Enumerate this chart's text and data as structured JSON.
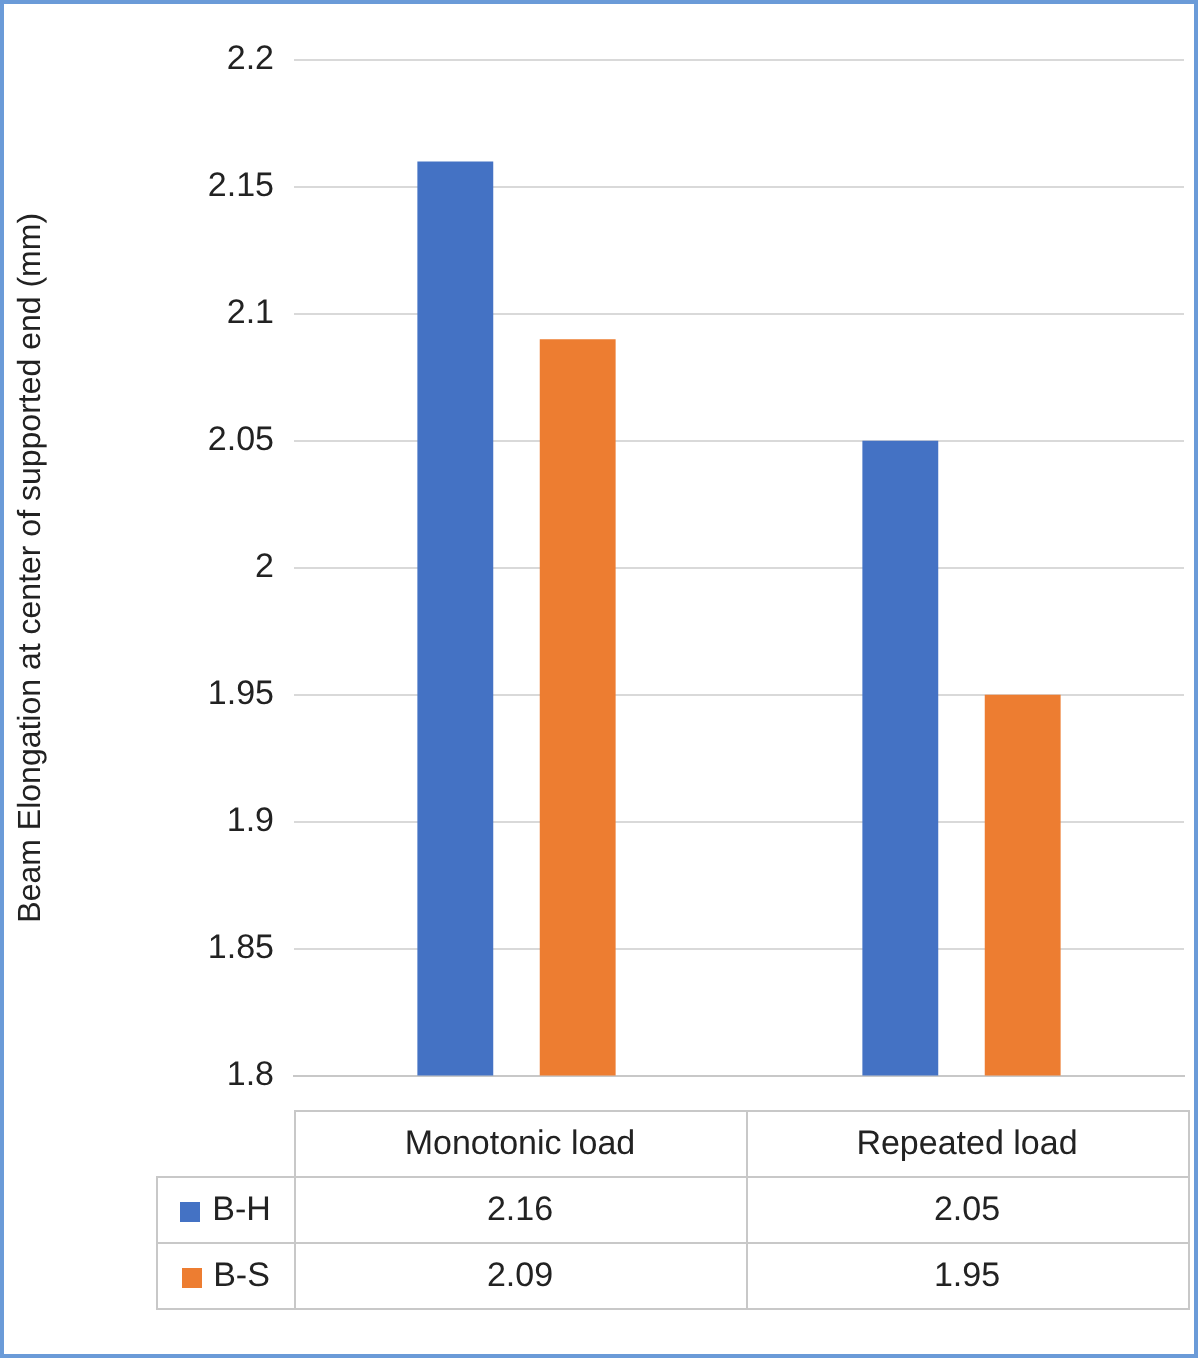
{
  "chart_data": {
    "type": "bar",
    "ylabel": "Beam Elongation at center of supported end (mm)",
    "categories": [
      "Monotonic load",
      "Repeated load"
    ],
    "series": [
      {
        "name": "B-H",
        "color": "#4472c4",
        "values": [
          2.16,
          2.05
        ]
      },
      {
        "name": "B-S",
        "color": "#ed7d31",
        "values": [
          2.09,
          1.95
        ]
      }
    ],
    "ylim": [
      1.8,
      2.2
    ],
    "yticks": [
      1.8,
      1.85,
      1.9,
      1.95,
      2,
      2.05,
      2.1,
      2.15,
      2.2
    ],
    "grid": "y",
    "legend": "bottom",
    "data_labels": true
  }
}
